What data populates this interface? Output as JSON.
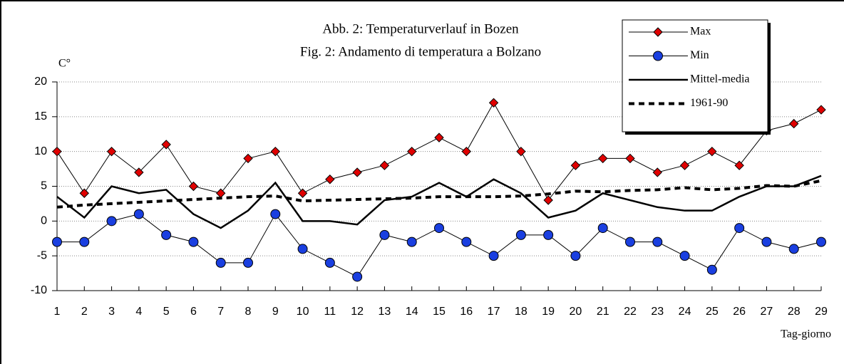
{
  "chart_data": {
    "type": "line",
    "title": "Abb. 2: Temperaturverlauf in Bozen",
    "subtitle": "Fig. 2: Andamento di temperatura a Bolzano",
    "y_label": "C°",
    "x_label": "Tag-giorno",
    "x": [
      1,
      2,
      3,
      4,
      5,
      6,
      7,
      8,
      9,
      10,
      11,
      12,
      13,
      14,
      15,
      16,
      17,
      18,
      19,
      20,
      21,
      22,
      23,
      24,
      25,
      26,
      27,
      28,
      29
    ],
    "xlim": [
      1,
      29
    ],
    "xticks": [
      1,
      2,
      3,
      4,
      5,
      6,
      7,
      8,
      9,
      10,
      11,
      12,
      13,
      14,
      15,
      16,
      17,
      18,
      19,
      20,
      21,
      22,
      23,
      24,
      25,
      26,
      27,
      28,
      29
    ],
    "ylim": [
      -10,
      20
    ],
    "yticks": [
      -10,
      -5,
      0,
      5,
      10,
      15,
      20
    ],
    "grid": true,
    "legend": "upper right",
    "series": [
      {
        "name": "Max",
        "color": "#e00000",
        "marker": "diamond",
        "line": "thin",
        "values": [
          10,
          4,
          10,
          7,
          11,
          5,
          4,
          9,
          10,
          4,
          6,
          7,
          8,
          10,
          12,
          10,
          17,
          10,
          3,
          8,
          9,
          9,
          7,
          8,
          10,
          8,
          13,
          14,
          16
        ]
      },
      {
        "name": "Min",
        "color": "#1a3fe0",
        "marker": "circle",
        "line": "thin",
        "values": [
          -3,
          -3,
          0,
          1,
          -2,
          -3,
          -6,
          -6,
          1,
          -4,
          -6,
          -8,
          -2,
          -3,
          -1,
          -3,
          -5,
          -2,
          -2,
          -5,
          -1,
          -3,
          -3,
          -5,
          -7,
          -1,
          -3,
          -4,
          -3
        ]
      },
      {
        "name": "Mittel-media",
        "color": "#000000",
        "marker": "none",
        "line": "thick",
        "values": [
          3.5,
          0.5,
          5,
          4,
          4.5,
          1,
          -1,
          1.5,
          5.5,
          0,
          0,
          -0.5,
          3,
          3.5,
          5.5,
          3.5,
          6,
          4,
          0.5,
          1.5,
          4,
          3,
          2,
          1.5,
          1.5,
          3.5,
          5,
          5,
          6.5
        ]
      },
      {
        "name": "1961-90",
        "color": "#000000",
        "marker": "none",
        "line": "dashed",
        "values": [
          2,
          2.3,
          2.5,
          2.7,
          2.9,
          3.1,
          3.3,
          3.5,
          3.6,
          2.9,
          3,
          3.1,
          3.2,
          3.3,
          3.5,
          3.5,
          3.5,
          3.6,
          3.9,
          4.3,
          4.2,
          4.4,
          4.5,
          4.8,
          4.5,
          4.7,
          5.1,
          5,
          5.8
        ]
      }
    ]
  }
}
